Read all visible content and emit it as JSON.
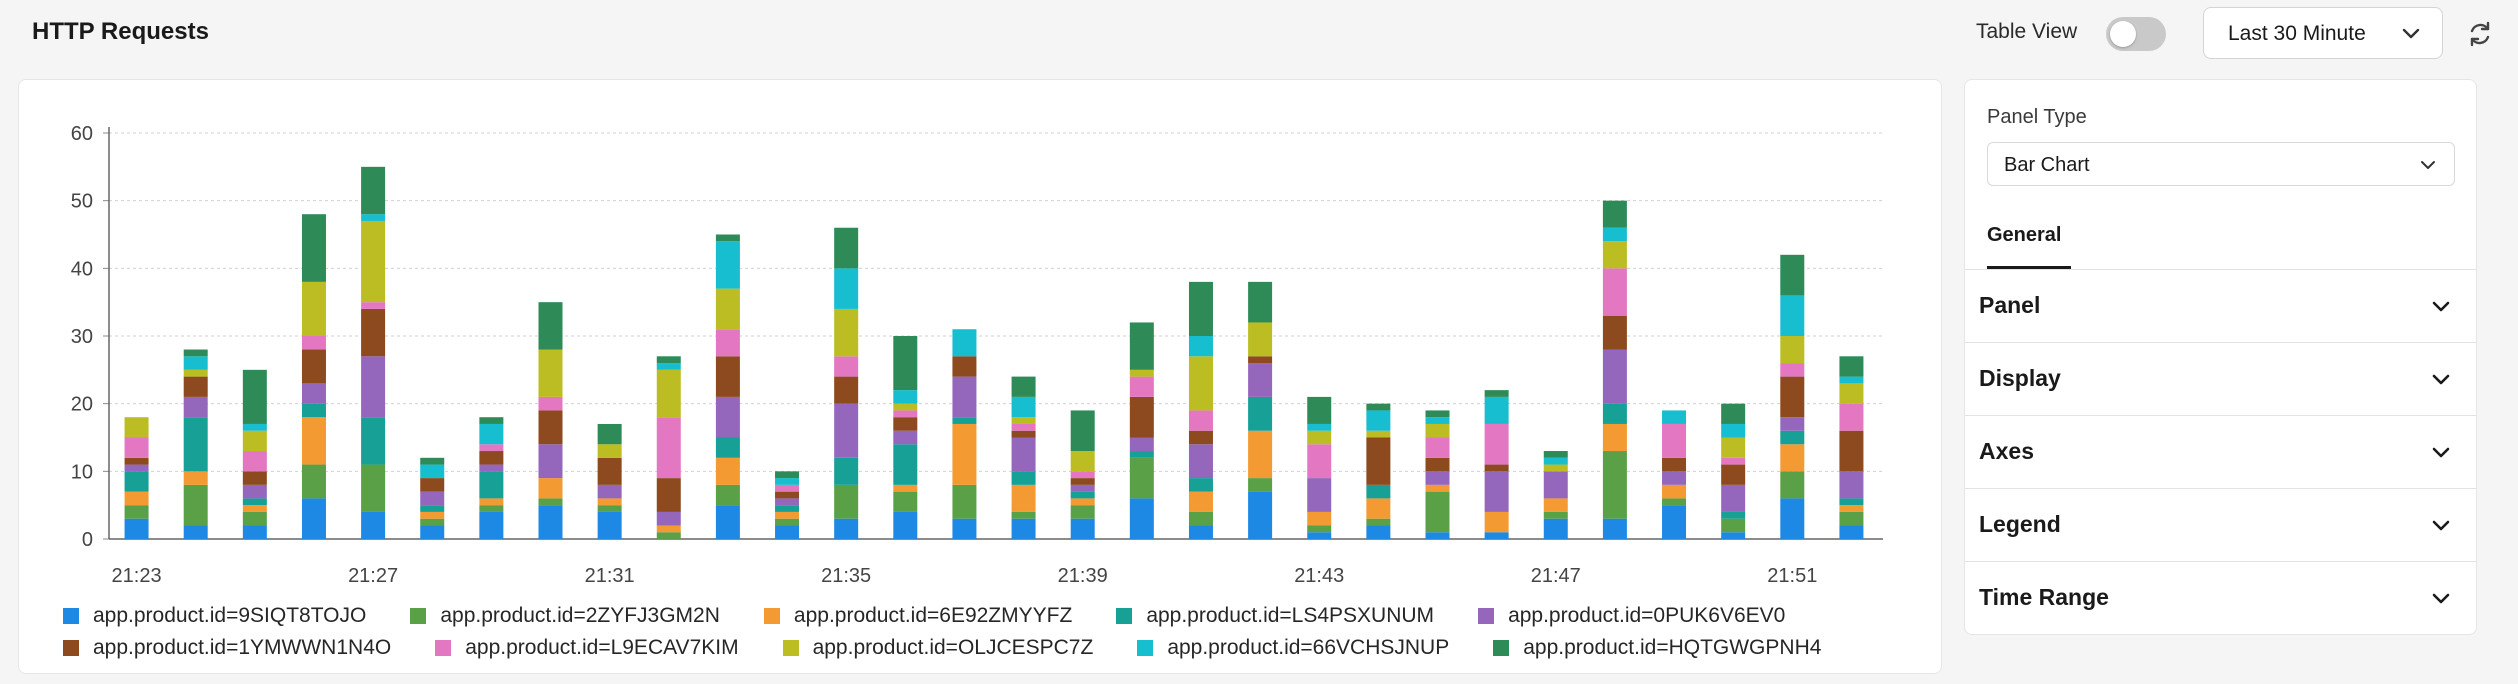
{
  "header": {
    "title": "HTTP Requests",
    "table_view_label": "Table View",
    "table_view_on": false,
    "time_range": "Last 30 Minute"
  },
  "side_panel": {
    "panel_type_label": "Panel Type",
    "panel_type_value": "Bar Chart",
    "tab": "General",
    "sections": [
      "Panel",
      "Display",
      "Axes",
      "Legend",
      "Time Range"
    ]
  },
  "chart_data": {
    "type": "bar",
    "stacked": true,
    "title": "",
    "xlabel": "",
    "ylabel": "",
    "ylim": [
      0,
      60
    ],
    "yticks": [
      0,
      10,
      20,
      30,
      40,
      50,
      60
    ],
    "grid": true,
    "legend_position": "bottom",
    "categories": [
      "21:23",
      "21:24",
      "21:25",
      "21:26",
      "21:27",
      "21:28",
      "21:29",
      "21:30",
      "21:31",
      "21:32",
      "21:33",
      "21:34",
      "21:35",
      "21:36",
      "21:37",
      "21:38",
      "21:39",
      "21:40",
      "21:41",
      "21:42",
      "21:43",
      "21:44",
      "21:45",
      "21:46",
      "21:47",
      "21:48",
      "21:49",
      "21:50",
      "21:51",
      "21:52"
    ],
    "xtick_labels": [
      "21:23",
      "21:27",
      "21:31",
      "21:35",
      "21:39",
      "21:43",
      "21:47",
      "21:51"
    ],
    "series": [
      {
        "name": "app.product.id=9SIQT8TOJO",
        "color": "#1e88e5",
        "values": [
          3,
          2,
          2,
          6,
          4,
          2,
          4,
          5,
          4,
          0,
          5,
          2,
          3,
          4,
          3,
          3,
          3,
          6,
          2,
          7,
          1,
          2,
          1,
          1,
          3,
          3,
          5,
          1,
          6,
          2
        ]
      },
      {
        "name": "app.product.id=2ZYFJ3GM2N",
        "color": "#5aa046",
        "values": [
          2,
          6,
          2,
          5,
          7,
          1,
          1,
          1,
          1,
          1,
          3,
          1,
          5,
          3,
          5,
          1,
          2,
          6,
          2,
          2,
          1,
          1,
          6,
          0,
          1,
          10,
          1,
          2,
          4,
          2
        ]
      },
      {
        "name": "app.product.id=6E92ZMYYFZ",
        "color": "#f39a33",
        "values": [
          2,
          2,
          1,
          7,
          0,
          1,
          1,
          3,
          1,
          1,
          4,
          1,
          0,
          1,
          9,
          4,
          1,
          0,
          3,
          7,
          2,
          3,
          1,
          3,
          2,
          4,
          2,
          0,
          4,
          1
        ]
      },
      {
        "name": "app.product.id=LS4PSXUNUM",
        "color": "#16a096",
        "values": [
          3,
          8,
          1,
          2,
          7,
          1,
          4,
          0,
          0,
          0,
          3,
          1,
          4,
          6,
          1,
          2,
          1,
          1,
          2,
          5,
          0,
          2,
          0,
          0,
          0,
          3,
          0,
          1,
          2,
          1
        ]
      },
      {
        "name": "app.product.id=0PUK6V6EV0",
        "color": "#9467bd",
        "values": [
          1,
          3,
          2,
          3,
          9,
          2,
          1,
          5,
          2,
          2,
          6,
          1,
          8,
          2,
          6,
          5,
          1,
          2,
          5,
          5,
          5,
          0,
          2,
          6,
          4,
          8,
          2,
          4,
          2,
          4
        ]
      },
      {
        "name": "app.product.id=1YMWWN1N4O",
        "color": "#8c4a1e",
        "values": [
          1,
          3,
          2,
          5,
          7,
          2,
          2,
          5,
          4,
          5,
          6,
          1,
          4,
          2,
          3,
          1,
          1,
          6,
          2,
          1,
          0,
          7,
          2,
          1,
          0,
          5,
          2,
          3,
          6,
          6
        ]
      },
      {
        "name": "app.product.id=L9ECAV7KIM",
        "color": "#e377c2",
        "values": [
          3,
          0,
          3,
          2,
          1,
          0,
          1,
          2,
          0,
          9,
          4,
          1,
          3,
          1,
          0,
          1,
          1,
          3,
          3,
          0,
          5,
          0,
          3,
          6,
          0,
          7,
          5,
          1,
          2,
          4
        ]
      },
      {
        "name": "app.product.id=OLJCESPC7Z",
        "color": "#bcbd22",
        "values": [
          3,
          1,
          3,
          8,
          12,
          0,
          0,
          7,
          2,
          7,
          6,
          0,
          7,
          1,
          0,
          1,
          3,
          1,
          8,
          5,
          2,
          1,
          2,
          0,
          1,
          4,
          0,
          3,
          4,
          3
        ]
      },
      {
        "name": "app.product.id=66VCHSJNUP",
        "color": "#17becf",
        "values": [
          0,
          2,
          1,
          0,
          1,
          2,
          3,
          0,
          0,
          1,
          7,
          1,
          6,
          2,
          4,
          3,
          0,
          0,
          3,
          0,
          1,
          3,
          1,
          4,
          1,
          2,
          2,
          2,
          6,
          1
        ]
      },
      {
        "name": "app.product.id=HQTGWGPNH4",
        "color": "#2e8b57",
        "values": [
          0,
          1,
          8,
          10,
          7,
          1,
          1,
          7,
          3,
          1,
          1,
          1,
          6,
          8,
          0,
          3,
          6,
          7,
          8,
          6,
          4,
          1,
          1,
          1,
          1,
          4,
          0,
          3,
          6,
          3
        ]
      }
    ]
  }
}
